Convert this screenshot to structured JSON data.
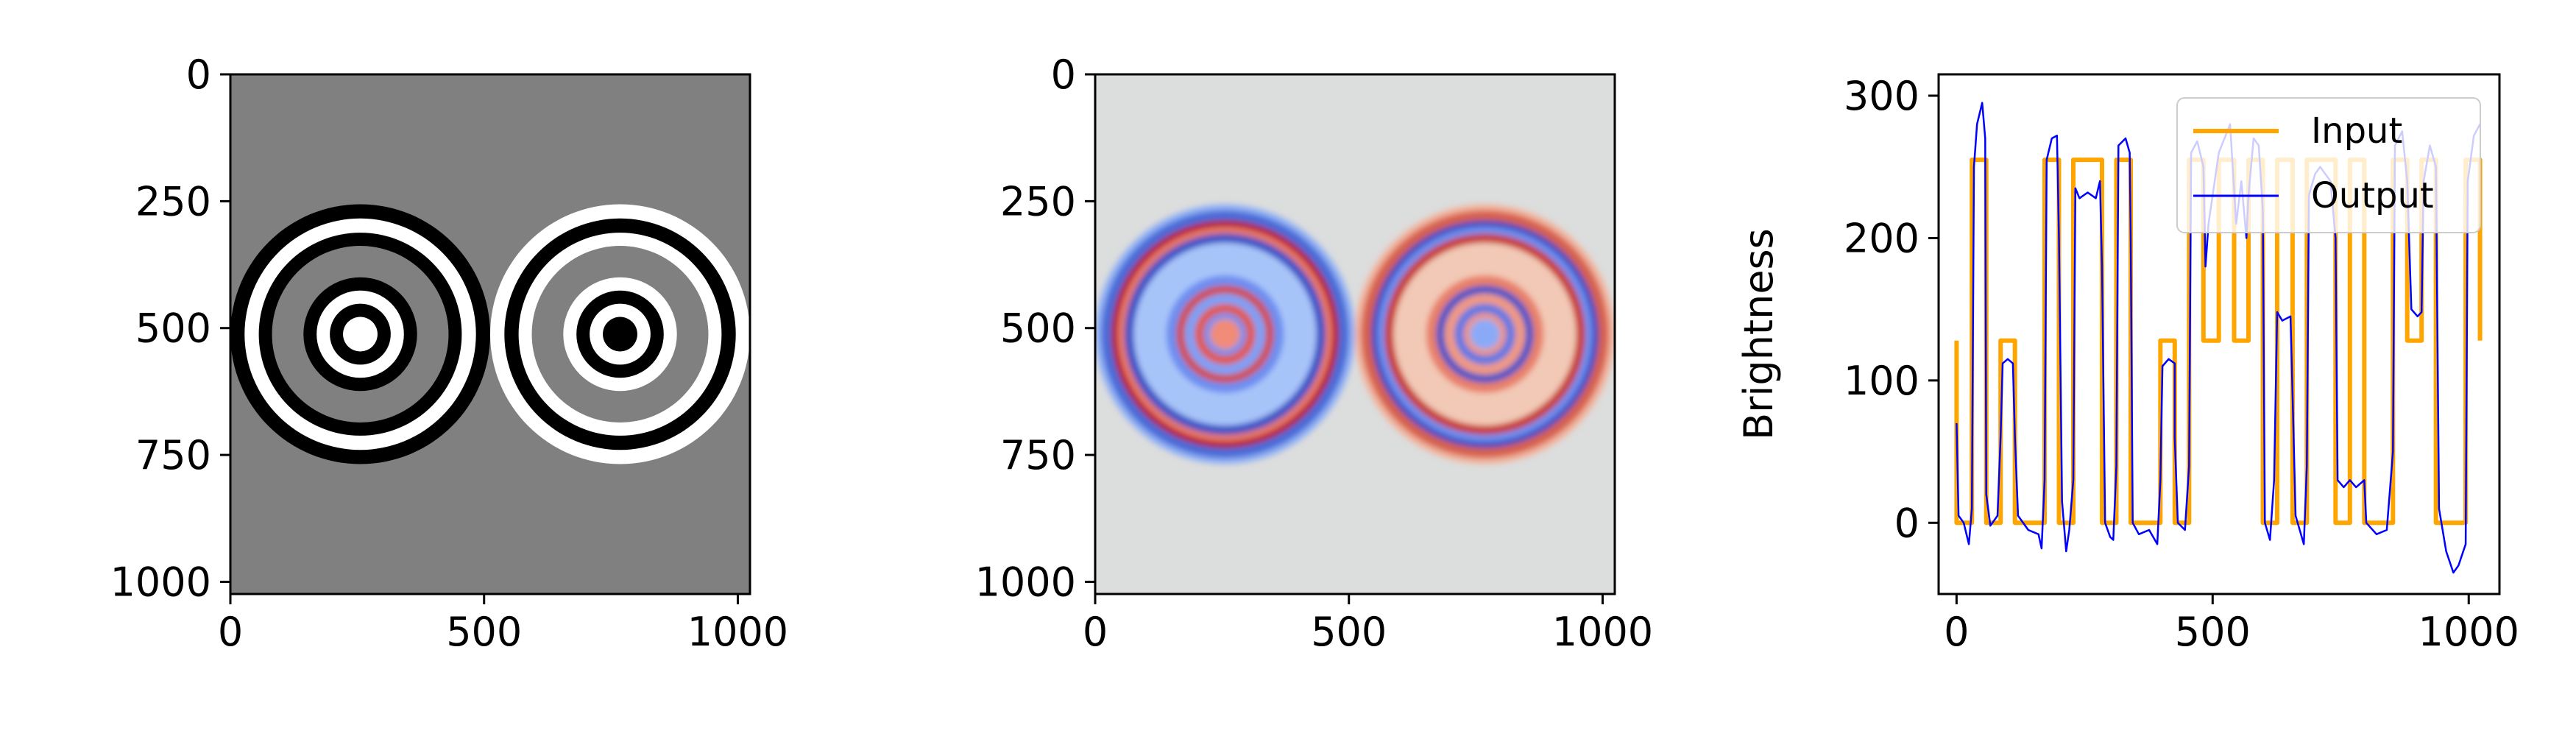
{
  "chart_data": [
    {
      "type": "heatmap",
      "panel": "input-image",
      "title": "",
      "colormap": "gray",
      "background_value": 128,
      "xlim": [
        0,
        1024
      ],
      "ylim": [
        1024,
        0
      ],
      "x_ticks": [
        0,
        500,
        1000
      ],
      "y_ticks": [
        0,
        250,
        500,
        750,
        1000
      ],
      "circles": [
        {
          "center": [
            256,
            512
          ],
          "rings": [
            {
              "r": 256,
              "value": 0
            },
            {
              "r": 228,
              "value": 255
            },
            {
              "r": 200,
              "value": 0
            },
            {
              "r": 174,
              "value": 128
            },
            {
              "r": 112,
              "value": 0
            },
            {
              "r": 86,
              "value": 255
            },
            {
              "r": 60,
              "value": 0
            },
            {
              "r": 34,
              "value": 255
            }
          ]
        },
        {
          "center": [
            768,
            512
          ],
          "rings": [
            {
              "r": 256,
              "value": 255
            },
            {
              "r": 228,
              "value": 0
            },
            {
              "r": 200,
              "value": 255
            },
            {
              "r": 174,
              "value": 128
            },
            {
              "r": 112,
              "value": 255
            },
            {
              "r": 86,
              "value": 0
            },
            {
              "r": 60,
              "value": 255
            },
            {
              "r": 34,
              "value": 0
            }
          ]
        }
      ]
    },
    {
      "type": "heatmap",
      "panel": "filtered-image",
      "title": "",
      "colormap": "coolwarm",
      "background_color": "#dcdddd",
      "xlim": [
        0,
        1024
      ],
      "ylim": [
        1024,
        0
      ],
      "x_ticks": [
        0,
        500,
        1000
      ],
      "y_ticks": [
        0,
        250,
        500,
        750,
        1000
      ],
      "circles": [
        {
          "center": [
            256,
            512
          ],
          "rings": [
            {
              "r": 256,
              "color": "#8fb0f5"
            },
            {
              "r": 244,
              "color": "#4a6ad7"
            },
            {
              "r": 224,
              "color": "#b40426"
            },
            {
              "r": 212,
              "color": "#e7796a"
            },
            {
              "r": 198,
              "color": "#3b53c6"
            },
            {
              "r": 180,
              "color": "#a7c4f9"
            },
            {
              "r": 116,
              "color": "#6d8ef0"
            },
            {
              "r": 96,
              "color": "#d24b3f"
            },
            {
              "r": 80,
              "color": "#7da0f6"
            },
            {
              "r": 60,
              "color": "#e05a4a"
            },
            {
              "r": 42,
              "color": "#6f92f2"
            },
            {
              "r": 30,
              "color": "#f08c78"
            }
          ]
        },
        {
          "center": [
            768,
            512
          ],
          "rings": [
            {
              "r": 256,
              "color": "#f2b39c"
            },
            {
              "r": 244,
              "color": "#d6604d"
            },
            {
              "r": 224,
              "color": "#3b4cc0"
            },
            {
              "r": 212,
              "color": "#6f8ff0"
            },
            {
              "r": 198,
              "color": "#c83d35"
            },
            {
              "r": 180,
              "color": "#f2c9b6"
            },
            {
              "r": 116,
              "color": "#e8806a"
            },
            {
              "r": 96,
              "color": "#3f55c8"
            },
            {
              "r": 80,
              "color": "#f09a82"
            },
            {
              "r": 60,
              "color": "#5a78e4"
            },
            {
              "r": 42,
              "color": "#f0967d"
            },
            {
              "r": 30,
              "color": "#8aaaf8"
            }
          ]
        }
      ]
    },
    {
      "type": "line",
      "panel": "profile",
      "title": "",
      "xlabel": "",
      "ylabel": "Brightness",
      "xlim": [
        -35,
        1060
      ],
      "ylim": [
        -50,
        315
      ],
      "x_ticks": [
        0,
        500,
        1000
      ],
      "y_ticks": [
        0,
        100,
        200,
        300
      ],
      "legend_position": "upper-right",
      "series": [
        {
          "name": "Input",
          "color": "#ffa500",
          "points": [
            [
              0,
              128
            ],
            [
              0,
              0
            ],
            [
              30,
              0
            ],
            [
              30,
              255
            ],
            [
              58,
              255
            ],
            [
              58,
              0
            ],
            [
              86,
              0
            ],
            [
              86,
              128
            ],
            [
              114,
              128
            ],
            [
              114,
              0
            ],
            [
              172,
              0
            ],
            [
              172,
              255
            ],
            [
              200,
              255
            ],
            [
              200,
              0
            ],
            [
              228,
              0
            ],
            [
              228,
              255
            ],
            [
              284,
              255
            ],
            [
              284,
              0
            ],
            [
              312,
              0
            ],
            [
              312,
              255
            ],
            [
              340,
              255
            ],
            [
              340,
              0
            ],
            [
              398,
              0
            ],
            [
              398,
              128
            ],
            [
              426,
              128
            ],
            [
              426,
              0
            ],
            [
              454,
              0
            ],
            [
              454,
              255
            ],
            [
              482,
              255
            ],
            [
              482,
              128
            ],
            [
              512,
              128
            ],
            [
              512,
              255
            ],
            [
              542,
              255
            ],
            [
              542,
              128
            ],
            [
              570,
              128
            ],
            [
              570,
              255
            ],
            [
              598,
              255
            ],
            [
              598,
              0
            ],
            [
              626,
              0
            ],
            [
              626,
              255
            ],
            [
              656,
              255
            ],
            [
              656,
              0
            ],
            [
              684,
              0
            ],
            [
              684,
              255
            ],
            [
              740,
              255
            ],
            [
              740,
              0
            ],
            [
              768,
              0
            ],
            [
              768,
              255
            ],
            [
              796,
              255
            ],
            [
              796,
              0
            ],
            [
              852,
              0
            ],
            [
              852,
              255
            ],
            [
              880,
              255
            ],
            [
              880,
              128
            ],
            [
              908,
              128
            ],
            [
              908,
              255
            ],
            [
              936,
              255
            ],
            [
              936,
              0
            ],
            [
              994,
              0
            ],
            [
              994,
              255
            ],
            [
              1022,
              255
            ],
            [
              1022,
              128
            ]
          ]
        },
        {
          "name": "Output",
          "color": "#0000ff",
          "points": [
            [
              0,
              70
            ],
            [
              4,
              5
            ],
            [
              14,
              0
            ],
            [
              24,
              -15
            ],
            [
              30,
              10
            ],
            [
              34,
              250
            ],
            [
              40,
              280
            ],
            [
              50,
              295
            ],
            [
              56,
              270
            ],
            [
              58,
              20
            ],
            [
              66,
              -2
            ],
            [
              80,
              5
            ],
            [
              86,
              60
            ],
            [
              90,
              112
            ],
            [
              100,
              115
            ],
            [
              110,
              112
            ],
            [
              114,
              60
            ],
            [
              120,
              5
            ],
            [
              140,
              -5
            ],
            [
              160,
              -8
            ],
            [
              166,
              -18
            ],
            [
              172,
              30
            ],
            [
              176,
              255
            ],
            [
              186,
              270
            ],
            [
              196,
              272
            ],
            [
              200,
              200
            ],
            [
              206,
              15
            ],
            [
              214,
              -20
            ],
            [
              220,
              -5
            ],
            [
              228,
              30
            ],
            [
              232,
              235
            ],
            [
              240,
              228
            ],
            [
              256,
              232
            ],
            [
              272,
              228
            ],
            [
              280,
              240
            ],
            [
              284,
              180
            ],
            [
              290,
              0
            ],
            [
              300,
              -10
            ],
            [
              306,
              -12
            ],
            [
              312,
              40
            ],
            [
              316,
              265
            ],
            [
              330,
              270
            ],
            [
              338,
              260
            ],
            [
              340,
              200
            ],
            [
              344,
              0
            ],
            [
              356,
              -8
            ],
            [
              376,
              -5
            ],
            [
              392,
              -15
            ],
            [
              398,
              30
            ],
            [
              402,
              110
            ],
            [
              414,
              115
            ],
            [
              426,
              112
            ],
            [
              426,
              60
            ],
            [
              432,
              0
            ],
            [
              446,
              -5
            ],
            [
              454,
              40
            ],
            [
              458,
              260
            ],
            [
              470,
              268
            ],
            [
              482,
              250
            ],
            [
              486,
              180
            ],
            [
              492,
              210
            ],
            [
              512,
              260
            ],
            [
              534,
              280
            ],
            [
              546,
              210
            ],
            [
              556,
              240
            ],
            [
              566,
              200
            ],
            [
              570,
              230
            ],
            [
              580,
              270
            ],
            [
              590,
              265
            ],
            [
              598,
              220
            ],
            [
              602,
              0
            ],
            [
              612,
              -12
            ],
            [
              620,
              30
            ],
            [
              626,
              148
            ],
            [
              636,
              142
            ],
            [
              652,
              145
            ],
            [
              656,
              90
            ],
            [
              662,
              5
            ],
            [
              678,
              -15
            ],
            [
              684,
              40
            ],
            [
              688,
              230
            ],
            [
              700,
              245
            ],
            [
              710,
              250
            ],
            [
              730,
              240
            ],
            [
              740,
              200
            ],
            [
              744,
              30
            ],
            [
              756,
              25
            ],
            [
              768,
              30
            ],
            [
              780,
              25
            ],
            [
              796,
              30
            ],
            [
              800,
              0
            ],
            [
              820,
              -8
            ],
            [
              840,
              -5
            ],
            [
              852,
              50
            ],
            [
              856,
              265
            ],
            [
              870,
              275
            ],
            [
              880,
              240
            ],
            [
              888,
              150
            ],
            [
              900,
              145
            ],
            [
              908,
              148
            ],
            [
              912,
              240
            ],
            [
              924,
              265
            ],
            [
              936,
              250
            ],
            [
              942,
              10
            ],
            [
              956,
              -20
            ],
            [
              970,
              -35
            ],
            [
              980,
              -30
            ],
            [
              994,
              -15
            ],
            [
              998,
              240
            ],
            [
              1010,
              272
            ],
            [
              1022,
              280
            ]
          ]
        }
      ]
    }
  ]
}
